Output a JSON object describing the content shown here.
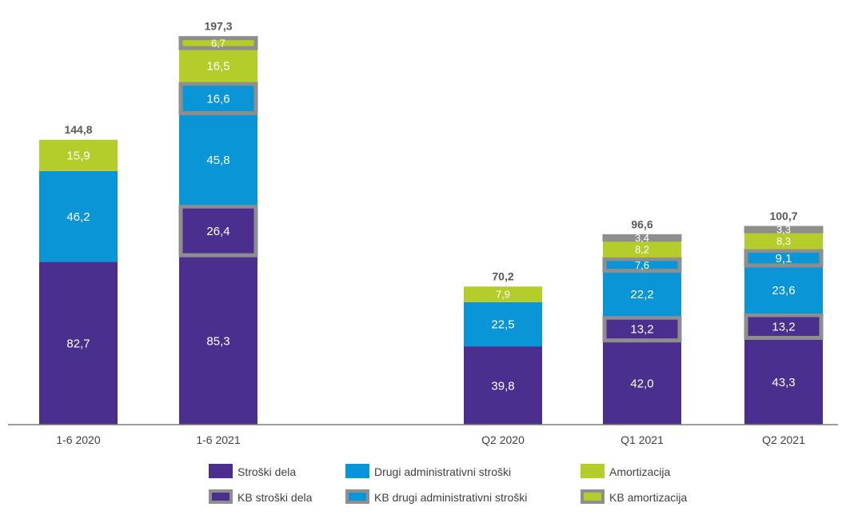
{
  "chart_data": {
    "type": "bar",
    "stacked": true,
    "categories": [
      "1-6 2020",
      "1-6 2021",
      "Q2 2020",
      "Q1 2021",
      "Q2 2021"
    ],
    "totals": [
      "144,8",
      "197,3",
      "70,2",
      "96,6",
      "100,7"
    ],
    "series": [
      {
        "name": "Stroški dela",
        "color": "#4a2f8f",
        "values": [
          82.7,
          85.3,
          39.8,
          42.0,
          43.3
        ],
        "labels": [
          "82,7",
          "85,3",
          "39,8",
          "42,0",
          "43,3"
        ]
      },
      {
        "name": "KB stroški dela",
        "color": "#4a2f8f",
        "kb": true,
        "values": [
          0,
          26.4,
          0,
          13.2,
          13.2
        ],
        "labels": [
          "",
          "26,4",
          "",
          "13,2",
          "13,2"
        ]
      },
      {
        "name": "Drugi administrativni stroški",
        "color": "#0a96d6",
        "values": [
          46.2,
          45.8,
          22.5,
          22.2,
          23.6
        ],
        "labels": [
          "46,2",
          "45,8",
          "22,5",
          "22,2",
          "23,6"
        ]
      },
      {
        "name": "KB drugi administrativni stroški",
        "color": "#0a96d6",
        "kb": true,
        "values": [
          0,
          16.6,
          0,
          7.6,
          9.1
        ],
        "labels": [
          "",
          "16,6",
          "",
          "7,6",
          "9,1"
        ]
      },
      {
        "name": "Amortizacija",
        "color": "#b5cd2b",
        "values": [
          15.9,
          16.5,
          7.9,
          8.2,
          8.3
        ],
        "labels": [
          "15,9",
          "16,5",
          "7,9",
          "8,2",
          "8,3"
        ]
      },
      {
        "name": "KB amortizacija",
        "color": "#b5cd2b",
        "kb": true,
        "values": [
          0,
          6.7,
          0,
          3.4,
          3.3
        ],
        "labels": [
          "",
          "6,7",
          "",
          "3,4",
          "3,3"
        ]
      }
    ],
    "kb_border_color": "#8e8e8e",
    "ylim": [
      0,
      200
    ],
    "grid": false,
    "legend_position": "bottom"
  }
}
